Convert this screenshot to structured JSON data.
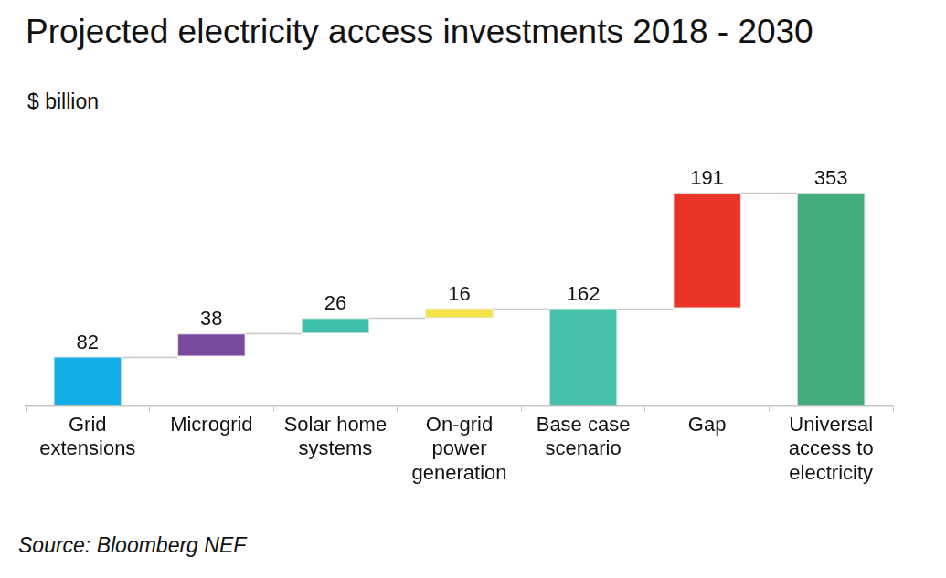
{
  "chart_data": {
    "type": "waterfall",
    "title": "Projected electricity access investments 2018 - 2030",
    "subtitle": "$ billion",
    "source": "Source: Bloomberg NEF",
    "categories": [
      "Grid extensions",
      "Microgrid",
      "Solar home systems",
      "On-grid power generation",
      "Base case scenario",
      "Gap",
      "Universal access to electricity"
    ],
    "values": [
      82,
      38,
      26,
      16,
      162,
      191,
      353
    ],
    "colors": [
      "#13aee8",
      "#7b4aa0",
      "#3ebfa9",
      "#f6e34a",
      "#46c1aa",
      "#ea3526",
      "#45ad7b"
    ],
    "data_labels": true,
    "tick_labels": "x",
    "grid": false
  }
}
